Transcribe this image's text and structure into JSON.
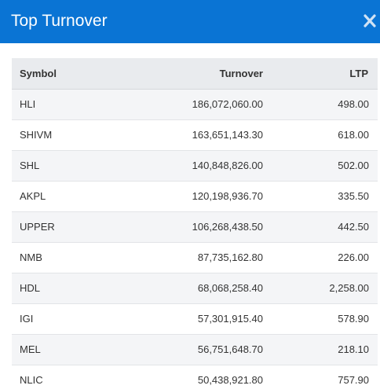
{
  "modal": {
    "title": "Top Turnover",
    "close_icon": "close-icon"
  },
  "table": {
    "headers": [
      "Symbol",
      "Turnover",
      "LTP"
    ],
    "rows": [
      {
        "symbol": "HLI",
        "turnover": "186,072,060.00",
        "ltp": "498.00"
      },
      {
        "symbol": "SHIVM",
        "turnover": "163,651,143.30",
        "ltp": "618.00"
      },
      {
        "symbol": "SHL",
        "turnover": "140,848,826.00",
        "ltp": "502.00"
      },
      {
        "symbol": "AKPL",
        "turnover": "120,198,936.70",
        "ltp": "335.50"
      },
      {
        "symbol": "UPPER",
        "turnover": "106,268,438.50",
        "ltp": "442.50"
      },
      {
        "symbol": "NMB",
        "turnover": "87,735,162.80",
        "ltp": "226.00"
      },
      {
        "symbol": "HDL",
        "turnover": "68,068,258.40",
        "ltp": "2,258.00"
      },
      {
        "symbol": "IGI",
        "turnover": "57,301,915.40",
        "ltp": "578.90"
      },
      {
        "symbol": "MEL",
        "turnover": "56,751,648.70",
        "ltp": "218.10"
      },
      {
        "symbol": "NLIC",
        "turnover": "50,438,921.80",
        "ltp": "757.90"
      }
    ]
  },
  "colors": {
    "header_bg": "#0a74d4",
    "title_text": "#ffffff",
    "table_header_bg": "#e9ebee",
    "row_stripe": "#f4f5f7",
    "text": "#333333"
  }
}
